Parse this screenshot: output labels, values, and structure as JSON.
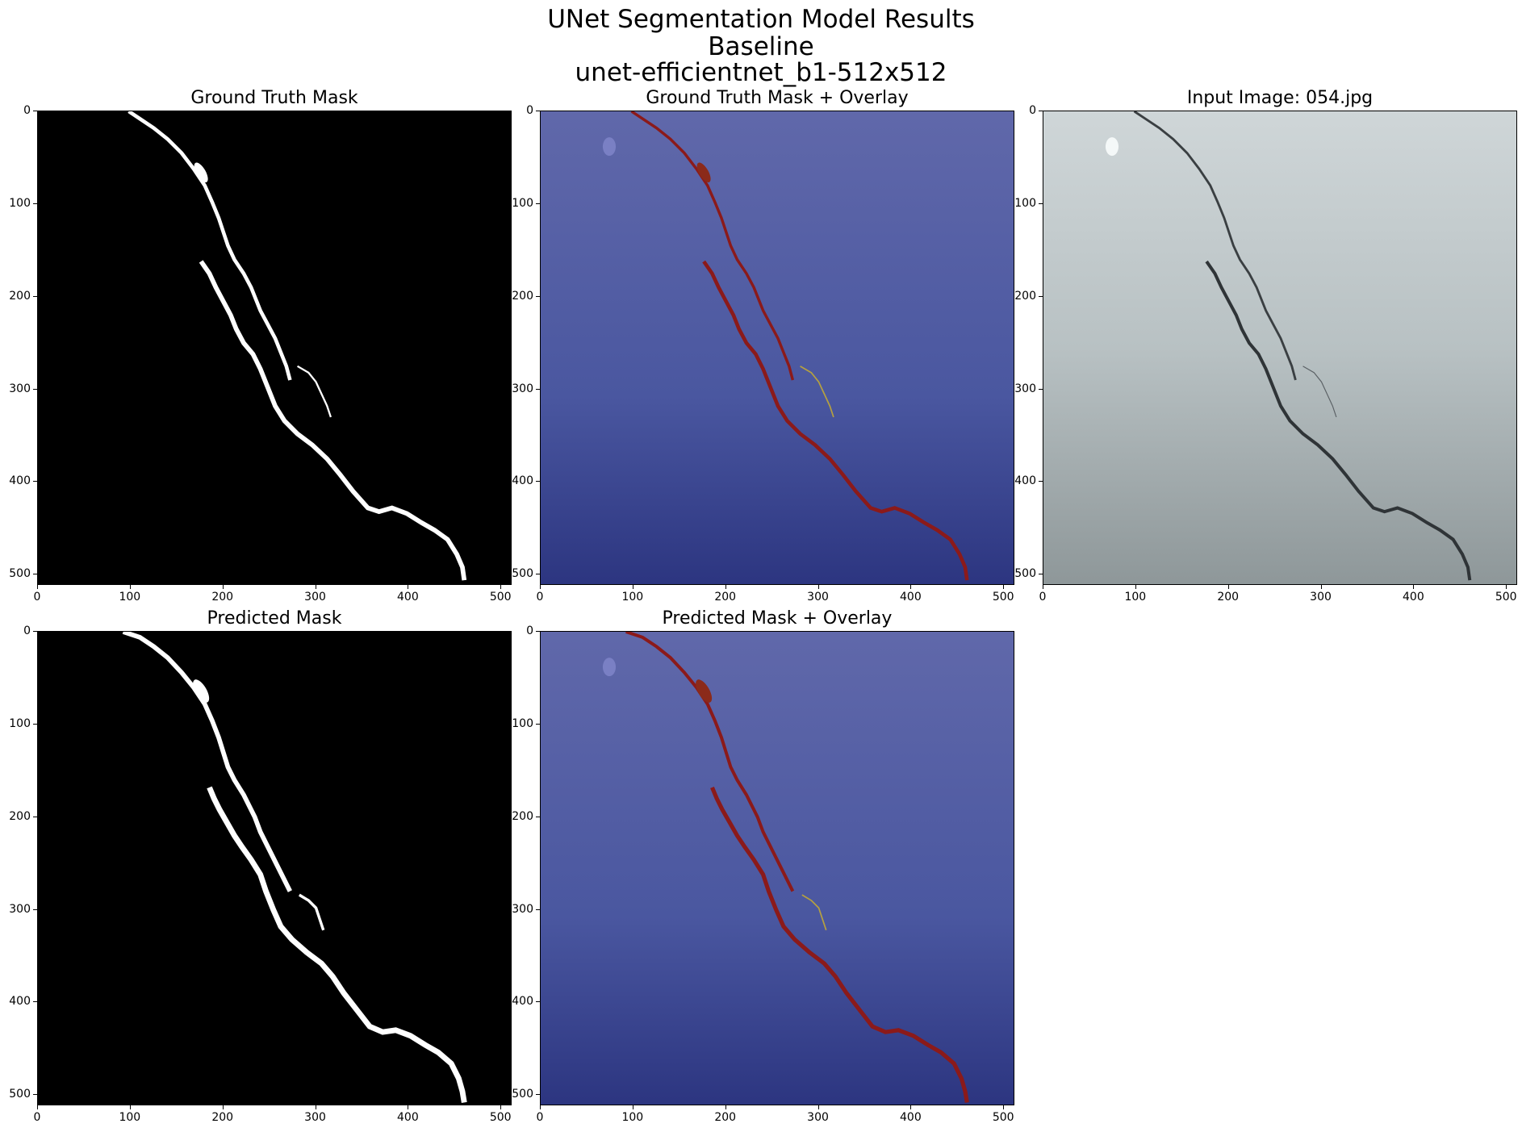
{
  "figure": {
    "title_lines": [
      "UNet Segmentation Model Results",
      "Baseline",
      "unet-efficientnet_b1-512x512"
    ]
  },
  "panels": {
    "gt_mask": {
      "title": "Ground Truth Mask"
    },
    "gt_overlay": {
      "title": "Ground Truth Mask + Overlay"
    },
    "input": {
      "title": "Input Image: 054.jpg"
    },
    "pred_mask": {
      "title": "Predicted Mask"
    },
    "pred_overlay": {
      "title": "Predicted Mask + Overlay"
    }
  },
  "axes": {
    "x_ticks": [
      "0",
      "100",
      "200",
      "300",
      "400",
      "500"
    ],
    "y_ticks": [
      "0",
      "100",
      "200",
      "300",
      "400",
      "500"
    ]
  },
  "colors": {
    "mask_bg": "#000000",
    "mask_fg": "#ffffff",
    "overlay_bg": "#4a5aa0",
    "crack_overlay": "#8b1a1a",
    "input_bg": "#b9c2c4"
  }
}
